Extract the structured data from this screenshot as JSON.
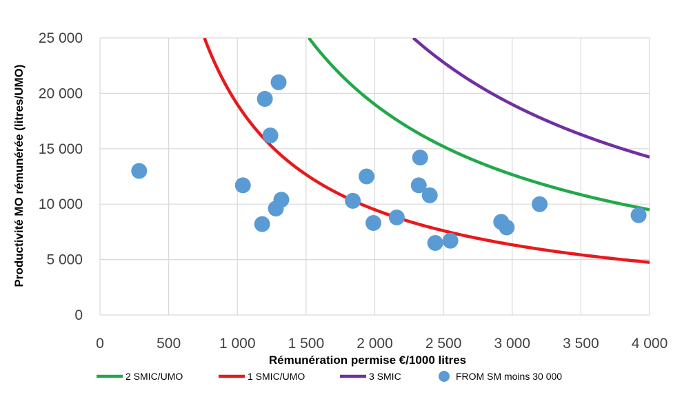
{
  "chart_data": {
    "type": "scatter",
    "xlabel": "Rémunération permise €/1000 litres",
    "ylabel": "Productivité MO rémunérée (litres/UMO)",
    "xlim": [
      0,
      4000
    ],
    "ylim": [
      0,
      25000
    ],
    "xticks": [
      0,
      500,
      1000,
      1500,
      2000,
      2500,
      3000,
      3500,
      4000
    ],
    "xtick_labels": [
      "0",
      "500",
      "1 000",
      "1 500",
      "2 000",
      "2 500",
      "3 000",
      "3 500",
      "4 000"
    ],
    "yticks": [
      0,
      5000,
      10000,
      15000,
      20000,
      25000
    ],
    "ytick_labels": [
      "0",
      "5 000",
      "10 000",
      "15 000",
      "20 000",
      "25 000"
    ],
    "grid": true,
    "legend_position": "bottom",
    "series": [
      {
        "name": "2 SMIC/UMO",
        "kind": "curve",
        "color": "#22a84a",
        "constant": 38000,
        "x_range": [
          1520,
          4000
        ]
      },
      {
        "name": "1 SMIC/UMO",
        "kind": "curve",
        "color": "#e8191d",
        "constant": 19000,
        "x_range": [
          760,
          4000
        ]
      },
      {
        "name": "3 SMIC",
        "kind": "curve",
        "color": "#7030a0",
        "constant": 57000,
        "x_range": [
          2280,
          4000
        ]
      },
      {
        "name": "FROM SM moins 30 000",
        "kind": "scatter",
        "color": "#5b9bd5",
        "points": [
          [
            285,
            13000
          ],
          [
            1040,
            11700
          ],
          [
            1180,
            8200
          ],
          [
            1200,
            19500
          ],
          [
            1240,
            16200
          ],
          [
            1280,
            9600
          ],
          [
            1300,
            21000
          ],
          [
            1320,
            10400
          ],
          [
            1840,
            10300
          ],
          [
            1940,
            12500
          ],
          [
            1990,
            8300
          ],
          [
            2160,
            8800
          ],
          [
            2320,
            11700
          ],
          [
            2330,
            14200
          ],
          [
            2400,
            10800
          ],
          [
            2440,
            6500
          ],
          [
            2550,
            6700
          ],
          [
            2920,
            8400
          ],
          [
            2960,
            7900
          ],
          [
            3200,
            10000
          ],
          [
            3920,
            9000
          ]
        ]
      }
    ]
  }
}
